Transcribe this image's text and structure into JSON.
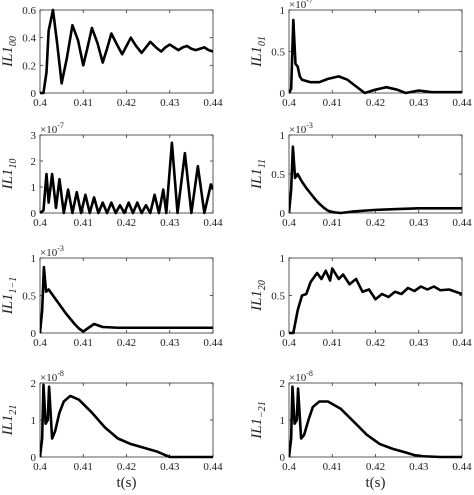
{
  "chart_data": [
    {
      "type": "line",
      "ylabel": "IL1",
      "ylabel_sub": "00",
      "xlim": [
        0.4,
        0.44
      ],
      "xticks": [
        0.4,
        0.41,
        0.42,
        0.43,
        0.44
      ],
      "ylim": [
        0,
        0.6
      ],
      "yticks": [
        0,
        0.2,
        0.4,
        0.6
      ],
      "color": "#000000",
      "x": [
        0.4,
        0.4008,
        0.4015,
        0.402,
        0.403,
        0.404,
        0.405,
        0.4062,
        0.4075,
        0.4088,
        0.41,
        0.411,
        0.412,
        0.4133,
        0.4145,
        0.4155,
        0.4165,
        0.4178,
        0.419,
        0.42,
        0.421,
        0.4222,
        0.4235,
        0.4245,
        0.4255,
        0.4268,
        0.428,
        0.429,
        0.43,
        0.431,
        0.432,
        0.433,
        0.434,
        0.435,
        0.436,
        0.437,
        0.438,
        0.439,
        0.44
      ],
      "values": [
        0,
        0,
        0.15,
        0.45,
        0.6,
        0.35,
        0.07,
        0.25,
        0.49,
        0.38,
        0.2,
        0.33,
        0.47,
        0.36,
        0.22,
        0.32,
        0.43,
        0.35,
        0.28,
        0.34,
        0.4,
        0.34,
        0.29,
        0.33,
        0.37,
        0.33,
        0.3,
        0.33,
        0.35,
        0.33,
        0.31,
        0.33,
        0.34,
        0.32,
        0.31,
        0.32,
        0.33,
        0.31,
        0.3
      ]
    },
    {
      "type": "line",
      "ylabel": "IL1",
      "ylabel_sub": "01",
      "exponent_base": "×10",
      "exponent": "-7",
      "xlim": [
        0.4,
        0.44
      ],
      "xticks": [
        0.4,
        0.41,
        0.42,
        0.43,
        0.44
      ],
      "ylim": [
        0,
        1
      ],
      "yticks": [
        0,
        0.5,
        1
      ],
      "color": "#000000",
      "x": [
        0.4,
        0.4005,
        0.401,
        0.4015,
        0.402,
        0.4025,
        0.403,
        0.405,
        0.407,
        0.409,
        0.4115,
        0.4135,
        0.4155,
        0.4175,
        0.42,
        0.4225,
        0.425,
        0.427,
        0.43,
        0.433,
        0.436,
        0.44
      ],
      "values": [
        0,
        0.05,
        0.88,
        0.35,
        0.32,
        0.2,
        0.16,
        0.13,
        0.13,
        0.17,
        0.2,
        0.16,
        0.08,
        0,
        0.04,
        0.07,
        0.04,
        0,
        0.03,
        0.01,
        0.01,
        0.01
      ]
    },
    {
      "type": "line",
      "ylabel": "IL1",
      "ylabel_sub": "10",
      "exponent_base": "×10",
      "exponent": "-7",
      "xlim": [
        0.4,
        0.44
      ],
      "xticks": [
        0.4,
        0.41,
        0.42,
        0.43,
        0.44
      ],
      "ylim": [
        0,
        3
      ],
      "yticks": [
        0,
        1,
        2,
        3
      ],
      "color": "#000000",
      "x": [
        0.4,
        0.4008,
        0.4015,
        0.402,
        0.4028,
        0.4037,
        0.4045,
        0.4055,
        0.4065,
        0.4075,
        0.4085,
        0.4095,
        0.4105,
        0.4115,
        0.4125,
        0.4135,
        0.4145,
        0.4155,
        0.4165,
        0.4175,
        0.4185,
        0.4195,
        0.4205,
        0.4215,
        0.4225,
        0.4235,
        0.4245,
        0.4255,
        0.4265,
        0.4275,
        0.4285,
        0.4292,
        0.4305,
        0.4318,
        0.4335,
        0.435,
        0.4365,
        0.438,
        0.4395,
        0.44
      ],
      "values": [
        0,
        0.1,
        1.5,
        0.4,
        1.5,
        0.2,
        1.3,
        0,
        0.9,
        0,
        0.8,
        0,
        0.7,
        0,
        0.6,
        0,
        0.4,
        0,
        0.4,
        0,
        0.3,
        0,
        0.4,
        0,
        0.4,
        0,
        0.3,
        0,
        0.7,
        0,
        0.9,
        0,
        2.7,
        0,
        2.3,
        0,
        1.8,
        0,
        1.1,
        0.9
      ]
    },
    {
      "type": "line",
      "ylabel": "IL1",
      "ylabel_sub": "11",
      "exponent_base": "×10",
      "exponent": "-3",
      "xlim": [
        0.4,
        0.44
      ],
      "xticks": [
        0.4,
        0.41,
        0.42,
        0.43,
        0.44
      ],
      "ylim": [
        0,
        1
      ],
      "yticks": [
        0,
        0.5,
        1
      ],
      "color": "#000000",
      "x": [
        0.4,
        0.4005,
        0.4009,
        0.4014,
        0.402,
        0.403,
        0.404,
        0.405,
        0.406,
        0.407,
        0.408,
        0.409,
        0.41,
        0.412,
        0.415,
        0.42,
        0.425,
        0.43,
        0.435,
        0.44
      ],
      "values": [
        0,
        0.3,
        0.85,
        0.45,
        0.5,
        0.4,
        0.32,
        0.25,
        0.18,
        0.12,
        0.07,
        0.03,
        0.01,
        0,
        0.02,
        0.04,
        0.05,
        0.06,
        0.06,
        0.06
      ]
    },
    {
      "type": "line",
      "ylabel": "IL1",
      "ylabel_sub": "1−1",
      "exponent_base": "×10",
      "exponent": "-3",
      "xlim": [
        0.4,
        0.44
      ],
      "xticks": [
        0.4,
        0.41,
        0.42,
        0.43,
        0.44
      ],
      "ylim": [
        0,
        1
      ],
      "yticks": [
        0,
        0.5,
        1
      ],
      "color": "#000000",
      "x": [
        0.4,
        0.4005,
        0.4009,
        0.4014,
        0.402,
        0.403,
        0.404,
        0.405,
        0.406,
        0.407,
        0.408,
        0.409,
        0.41,
        0.4115,
        0.4125,
        0.4145,
        0.418,
        0.425,
        0.43,
        0.435,
        0.44
      ],
      "values": [
        0,
        0.3,
        0.88,
        0.55,
        0.58,
        0.5,
        0.42,
        0.34,
        0.26,
        0.19,
        0.12,
        0.06,
        0.02,
        0.08,
        0.12,
        0.08,
        0.07,
        0.07,
        0.07,
        0.07,
        0.07
      ]
    },
    {
      "type": "line",
      "ylabel": "IL1",
      "ylabel_sub": "20",
      "xlim": [
        0.4,
        0.44
      ],
      "xticks": [
        0.4,
        0.41,
        0.42,
        0.43,
        0.44
      ],
      "ylim": [
        0,
        1
      ],
      "yticks": [
        0,
        0.5,
        1
      ],
      "color": "#000000",
      "x": [
        0.4,
        0.401,
        0.402,
        0.403,
        0.404,
        0.405,
        0.4065,
        0.4075,
        0.4085,
        0.4095,
        0.41,
        0.4115,
        0.4125,
        0.414,
        0.4155,
        0.417,
        0.4185,
        0.42,
        0.4215,
        0.423,
        0.4245,
        0.426,
        0.4275,
        0.429,
        0.4305,
        0.432,
        0.4335,
        0.435,
        0.437,
        0.4385,
        0.44
      ],
      "values": [
        0,
        0,
        0.3,
        0.5,
        0.52,
        0.68,
        0.8,
        0.72,
        0.83,
        0.7,
        0.86,
        0.72,
        0.78,
        0.65,
        0.72,
        0.55,
        0.58,
        0.45,
        0.52,
        0.48,
        0.55,
        0.52,
        0.6,
        0.56,
        0.62,
        0.58,
        0.62,
        0.57,
        0.58,
        0.55,
        0.52
      ]
    },
    {
      "type": "line",
      "ylabel": "IL1",
      "ylabel_sub": "21",
      "exponent_base": "×10",
      "exponent": "-8",
      "xlabel": "t(s)",
      "xlim": [
        0.4,
        0.44
      ],
      "xticks": [
        0.4,
        0.41,
        0.42,
        0.43,
        0.44
      ],
      "ylim": [
        0,
        2
      ],
      "yticks": [
        0,
        1,
        2
      ],
      "color": "#000000",
      "x": [
        0.4,
        0.4005,
        0.4008,
        0.4013,
        0.4018,
        0.4021,
        0.4028,
        0.4035,
        0.4045,
        0.4055,
        0.407,
        0.409,
        0.412,
        0.415,
        0.418,
        0.421,
        0.424,
        0.427,
        0.429,
        0.43,
        0.435,
        0.44
      ],
      "values": [
        0,
        0.5,
        1.95,
        0.9,
        1.0,
        1.9,
        0.5,
        0.7,
        1.2,
        1.5,
        1.65,
        1.55,
        1.2,
        0.8,
        0.5,
        0.35,
        0.25,
        0.15,
        0.05,
        0,
        0,
        0
      ]
    },
    {
      "type": "line",
      "ylabel": "IL1",
      "ylabel_sub": "−21",
      "exponent_base": "×10",
      "exponent": "-8",
      "xlabel": "t(s)",
      "xlim": [
        0.4,
        0.44
      ],
      "xticks": [
        0.4,
        0.41,
        0.42,
        0.43,
        0.44
      ],
      "ylim": [
        0,
        2
      ],
      "yticks": [
        0,
        1,
        2
      ],
      "color": "#000000",
      "x": [
        0.4,
        0.4005,
        0.4008,
        0.4013,
        0.4018,
        0.4021,
        0.4028,
        0.4035,
        0.4045,
        0.4055,
        0.407,
        0.409,
        0.412,
        0.415,
        0.418,
        0.421,
        0.424,
        0.427,
        0.429,
        0.431,
        0.435,
        0.44
      ],
      "values": [
        0,
        0.5,
        1.9,
        0.9,
        1.0,
        1.85,
        0.5,
        0.6,
        1.0,
        1.35,
        1.5,
        1.5,
        1.3,
        0.95,
        0.6,
        0.35,
        0.22,
        0.12,
        0.05,
        0.02,
        0,
        0
      ]
    }
  ]
}
